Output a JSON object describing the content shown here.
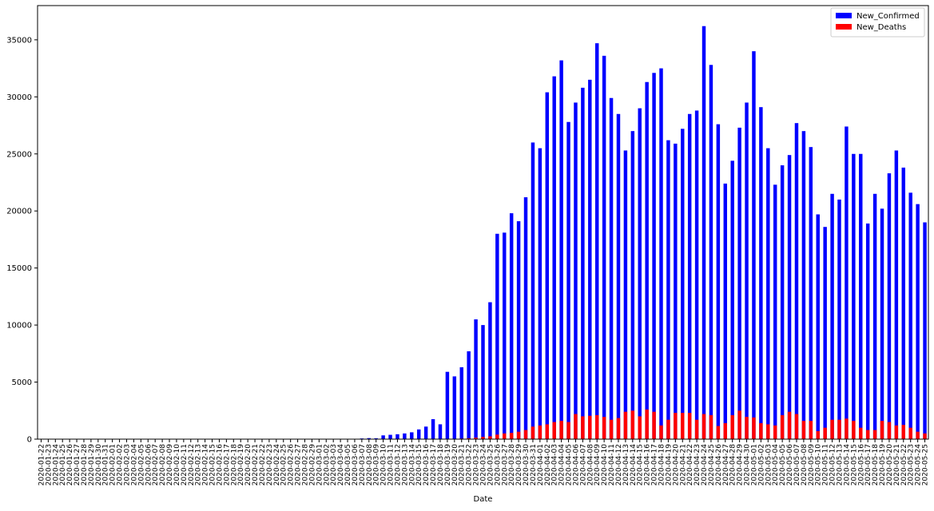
{
  "chart_data": {
    "type": "bar",
    "title": "",
    "xlabel": "Date",
    "ylabel": "",
    "ylim": [
      0,
      38000
    ],
    "yticks": [
      0,
      5000,
      10000,
      15000,
      20000,
      25000,
      30000,
      35000
    ],
    "grid": false,
    "legend_position": "top-right",
    "categories": [
      "2020-01-22",
      "2020-01-23",
      "2020-01-24",
      "2020-01-25",
      "2020-01-26",
      "2020-01-27",
      "2020-01-28",
      "2020-01-29",
      "2020-01-30",
      "2020-01-31",
      "2020-02-01",
      "2020-02-02",
      "2020-02-03",
      "2020-02-04",
      "2020-02-05",
      "2020-02-06",
      "2020-02-07",
      "2020-02-08",
      "2020-02-09",
      "2020-02-10",
      "2020-02-11",
      "2020-02-12",
      "2020-02-13",
      "2020-02-14",
      "2020-02-15",
      "2020-02-16",
      "2020-02-17",
      "2020-02-18",
      "2020-02-19",
      "2020-02-20",
      "2020-02-21",
      "2020-02-22",
      "2020-02-23",
      "2020-02-24",
      "2020-02-25",
      "2020-02-26",
      "2020-02-27",
      "2020-02-28",
      "2020-02-29",
      "2020-03-01",
      "2020-03-02",
      "2020-03-03",
      "2020-03-04",
      "2020-03-05",
      "2020-03-06",
      "2020-03-07",
      "2020-03-08",
      "2020-03-09",
      "2020-03-10",
      "2020-03-11",
      "2020-03-12",
      "2020-03-13",
      "2020-03-14",
      "2020-03-15",
      "2020-03-16",
      "2020-03-17",
      "2020-03-18",
      "2020-03-19",
      "2020-03-20",
      "2020-03-21",
      "2020-03-22",
      "2020-03-23",
      "2020-03-24",
      "2020-03-25",
      "2020-03-26",
      "2020-03-27",
      "2020-03-28",
      "2020-03-29",
      "2020-03-30",
      "2020-03-31",
      "2020-04-01",
      "2020-04-02",
      "2020-04-03",
      "2020-04-04",
      "2020-04-05",
      "2020-04-06",
      "2020-04-07",
      "2020-04-08",
      "2020-04-09",
      "2020-04-10",
      "2020-04-11",
      "2020-04-12",
      "2020-04-13",
      "2020-04-14",
      "2020-04-15",
      "2020-04-16",
      "2020-04-17",
      "2020-04-18",
      "2020-04-19",
      "2020-04-20",
      "2020-04-21",
      "2020-04-22",
      "2020-04-23",
      "2020-04-24",
      "2020-04-25",
      "2020-04-26",
      "2020-04-27",
      "2020-04-28",
      "2020-04-29",
      "2020-04-30",
      "2020-05-01",
      "2020-05-02",
      "2020-05-03",
      "2020-05-04",
      "2020-05-05",
      "2020-05-06",
      "2020-05-07",
      "2020-05-08",
      "2020-05-09",
      "2020-05-10",
      "2020-05-11",
      "2020-05-12",
      "2020-05-13",
      "2020-05-14",
      "2020-05-15",
      "2020-05-16",
      "2020-05-17",
      "2020-05-18",
      "2020-05-19",
      "2020-05-20",
      "2020-05-21",
      "2020-05-22",
      "2020-05-23",
      "2020-05-24",
      "2020-05-25"
    ],
    "series": [
      {
        "name": "New_Confirmed",
        "color": "#0000ff",
        "values": [
          0,
          0,
          0,
          0,
          0,
          0,
          0,
          0,
          0,
          0,
          0,
          0,
          0,
          0,
          0,
          0,
          0,
          0,
          0,
          0,
          0,
          0,
          0,
          0,
          0,
          0,
          0,
          0,
          0,
          0,
          0,
          0,
          0,
          20,
          0,
          0,
          0,
          0,
          0,
          0,
          0,
          0,
          30,
          30,
          30,
          60,
          90,
          80,
          330,
          380,
          430,
          500,
          600,
          850,
          1100,
          1750,
          1300,
          5900,
          5500,
          6300,
          7700,
          10500,
          10000,
          12000,
          18000,
          18100,
          19800,
          19100,
          21200,
          26000,
          25500,
          30400,
          31800,
          33200,
          27800,
          29500,
          30800,
          31500,
          34700,
          33600,
          29900,
          28500,
          25300,
          27000,
          29000,
          31300,
          32100,
          32500,
          26200,
          25900,
          27200,
          28500,
          28800,
          36200,
          32800,
          27600,
          22400,
          24400,
          27300,
          29500,
          34000,
          29100,
          25500,
          22300,
          24000,
          24900,
          27700,
          27000,
          25600,
          19700,
          18600,
          21500,
          21000,
          27400,
          25000,
          25000,
          18900,
          21500,
          20200,
          23300,
          25300,
          23800,
          21600,
          20600,
          19000
        ]
      },
      {
        "name": "New_Deaths",
        "color": "#ff0000",
        "values": [
          0,
          0,
          0,
          0,
          0,
          0,
          0,
          0,
          0,
          0,
          0,
          0,
          0,
          0,
          0,
          0,
          0,
          0,
          0,
          0,
          0,
          0,
          0,
          0,
          0,
          0,
          0,
          0,
          0,
          0,
          0,
          0,
          0,
          0,
          0,
          0,
          0,
          0,
          0,
          0,
          0,
          0,
          0,
          0,
          0,
          0,
          0,
          0,
          0,
          0,
          0,
          0,
          0,
          0,
          0,
          0,
          0,
          0,
          0,
          50,
          80,
          130,
          200,
          250,
          400,
          500,
          550,
          650,
          800,
          1100,
          1200,
          1300,
          1500,
          1600,
          1500,
          2200,
          2000,
          2050,
          2100,
          1950,
          1700,
          1850,
          2400,
          2500,
          2000,
          2600,
          2400,
          1200,
          1700,
          2300,
          2300,
          2300,
          1700,
          2200,
          2100,
          1150,
          1400,
          2100,
          2500,
          1950,
          1900,
          1400,
          1300,
          1200,
          2100,
          2400,
          2200,
          1600,
          1600,
          700,
          1000,
          1700,
          1700,
          1800,
          1600,
          1000,
          800,
          800,
          1600,
          1500,
          1200,
          1250,
          1000,
          650,
          500
        ]
      }
    ]
  }
}
